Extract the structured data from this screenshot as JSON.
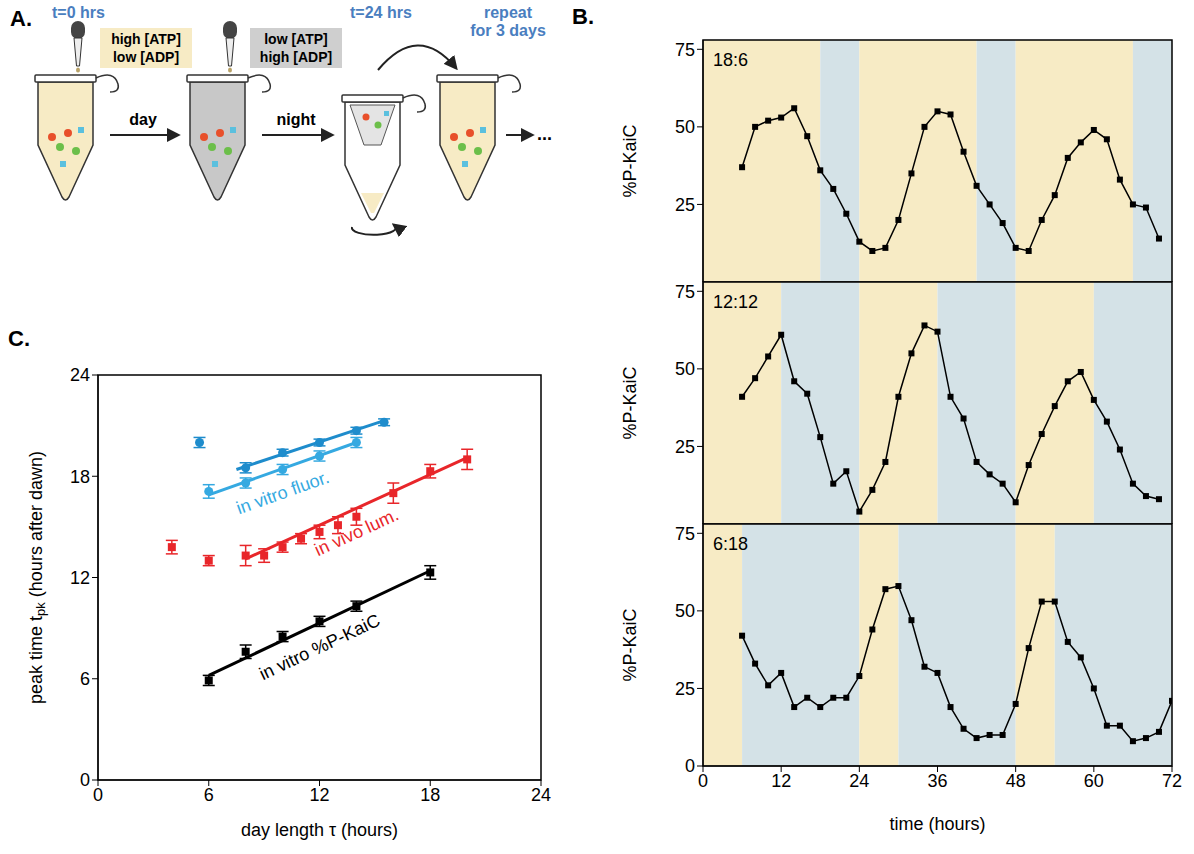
{
  "diagram": {
    "panel": "A.",
    "steps": [
      {
        "time": "t=0 hrs",
        "reagents": [
          "high [ATP]",
          "low [ADP]"
        ],
        "phase": "day"
      },
      {
        "reagents": [
          "low [ATP]",
          "high [ADP]"
        ],
        "phase": "night"
      },
      {
        "time": "t=24 hrs"
      }
    ],
    "repeat": [
      "repeat",
      "for 3 days"
    ],
    "continuation": "..."
  },
  "chart_data": [
    {
      "type": "line",
      "panel": "B.",
      "label": "18:6",
      "photoperiod": {
        "light": 18,
        "dark": 6
      },
      "x": [
        6,
        8,
        10,
        12,
        14,
        16,
        18,
        20,
        22,
        24,
        26,
        28,
        30,
        32,
        34,
        36,
        38,
        40,
        42,
        44,
        46,
        48,
        50,
        52,
        54,
        56,
        58,
        60,
        62,
        64,
        66,
        68,
        70
      ],
      "values": [
        37,
        50,
        52,
        53,
        56,
        47,
        36,
        30,
        22,
        13,
        10,
        11,
        20,
        35,
        50,
        55,
        54,
        42,
        31,
        25,
        19,
        11,
        10,
        20,
        28,
        40,
        45,
        49,
        46,
        33,
        25,
        24,
        14
      ],
      "color": "#000000",
      "marker": "square",
      "xlim": [
        0,
        72
      ],
      "xticks": [
        0,
        12,
        24,
        36,
        48,
        60,
        72
      ],
      "ylim": [
        0,
        78
      ],
      "yticks": [
        25,
        50,
        75
      ],
      "ylabel": "%P-KaiC",
      "tick_labels": "y"
    },
    {
      "type": "line",
      "label": "12:12",
      "photoperiod": {
        "light": 12,
        "dark": 12
      },
      "x": [
        6,
        8,
        10,
        12,
        14,
        16,
        18,
        20,
        22,
        24,
        26,
        28,
        30,
        32,
        34,
        36,
        38,
        40,
        42,
        44,
        46,
        48,
        50,
        52,
        54,
        56,
        58,
        60,
        62,
        64,
        66,
        68,
        70
      ],
      "values": [
        41,
        47,
        54,
        61,
        46,
        42,
        28,
        13,
        17,
        4,
        11,
        20,
        41,
        55,
        64,
        62,
        41,
        34,
        20,
        16,
        13,
        7,
        19,
        29,
        38,
        46,
        49,
        40,
        33,
        24,
        13,
        9,
        8
      ],
      "color": "#000000",
      "marker": "square",
      "xlim": [
        0,
        72
      ],
      "xticks": [
        0,
        12,
        24,
        36,
        48,
        60,
        72
      ],
      "ylim": [
        0,
        78
      ],
      "yticks": [
        25,
        50,
        75
      ],
      "ylabel": "%P-KaiC",
      "tick_labels": "y"
    },
    {
      "type": "line",
      "label": "6:18",
      "photoperiod": {
        "light": 6,
        "dark": 18
      },
      "x": [
        6,
        8,
        10,
        12,
        14,
        16,
        18,
        20,
        22,
        24,
        26,
        28,
        30,
        32,
        34,
        36,
        38,
        40,
        42,
        44,
        46,
        48,
        50,
        52,
        54,
        56,
        58,
        60,
        62,
        64,
        66,
        68,
        70,
        72
      ],
      "values": [
        42,
        33,
        26,
        30,
        19,
        22,
        19,
        22,
        22,
        29,
        44,
        57,
        58,
        47,
        32,
        30,
        19,
        12,
        9,
        10,
        10,
        20,
        38,
        53,
        53,
        40,
        35,
        25,
        13,
        13,
        8,
        9,
        11,
        21
      ],
      "color": "#000000",
      "marker": "square",
      "xlim": [
        0,
        72
      ],
      "xticks": [
        0,
        12,
        24,
        36,
        48,
        60,
        72
      ],
      "ylim": [
        0,
        78
      ],
      "yticks": [
        0,
        25,
        50,
        75
      ],
      "ylabel": "%P-KaiC",
      "xlabel": "time (hours)"
    },
    {
      "type": "scatter",
      "panel": "C.",
      "xlabel": "day length τ (hours)",
      "ylabel": {
        "text": "peak time t",
        "subscript": "pk",
        "suffix": "(hours after dawn)"
      },
      "xlim": [
        0,
        24
      ],
      "ylim": [
        0,
        24
      ],
      "xticks": [
        0,
        6,
        12,
        18,
        24
      ],
      "yticks": [
        0,
        6,
        12,
        18,
        24
      ],
      "series": [
        {
          "name": "in vitro %P-KaiC",
          "color": "#000000",
          "marker": "square",
          "x": [
            6,
            8,
            10,
            12,
            14,
            18
          ],
          "values": [
            5.9,
            7.6,
            8.5,
            9.4,
            10.3,
            12.3
          ],
          "errors": [
            0.3,
            0.4,
            0.3,
            0.3,
            0.3,
            0.4
          ],
          "fit": {
            "x": [
              6,
              18
            ],
            "y": [
              6.2,
              12.4
            ]
          }
        },
        {
          "name": "in vivo lum.",
          "color": "#e8262a",
          "marker": "square",
          "x": [
            4,
            6,
            8,
            9,
            10,
            11,
            12,
            13,
            14,
            16,
            18,
            20
          ],
          "values": [
            13.8,
            13.0,
            13.3,
            13.3,
            13.8,
            14.3,
            14.7,
            15.1,
            15.6,
            17.0,
            18.3,
            19.0
          ],
          "errors": [
            0.4,
            0.3,
            0.6,
            0.4,
            0.3,
            0.3,
            0.4,
            0.5,
            0.5,
            0.6,
            0.4,
            0.6
          ],
          "fit": {
            "x": [
              8,
              20
            ],
            "y": [
              13.1,
              19.1
            ]
          }
        },
        {
          "name": "in vitro fluor.",
          "color": "#35a9e1",
          "marker": "circle",
          "x": [
            6,
            8,
            10,
            12,
            14
          ],
          "values": [
            17.1,
            17.6,
            18.4,
            19.2,
            20.0
          ],
          "errors": [
            0.4,
            0.3,
            0.3,
            0.3,
            0.3
          ],
          "fit": {
            "x": [
              6,
              14
            ],
            "y": [
              16.9,
              20.0
            ]
          }
        },
        {
          "color": "#1e8ccc",
          "marker": "circle",
          "x": [
            5.5,
            8,
            10,
            12,
            14,
            15.5
          ],
          "values": [
            20.0,
            18.5,
            19.4,
            20.0,
            20.7,
            21.2
          ],
          "errors": [
            0.3,
            0.3,
            0.2,
            0.2,
            0.2,
            0.2
          ],
          "fit": {
            "x": [
              7.5,
              15.5
            ],
            "y": [
              18.4,
              21.3
            ]
          }
        }
      ]
    }
  ]
}
